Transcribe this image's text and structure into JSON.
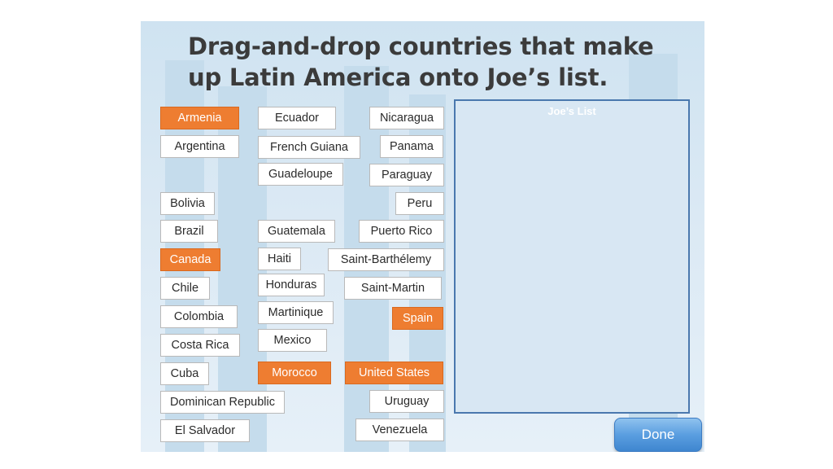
{
  "title": "Drag-and-drop countries that make up Latin America onto Joe’s list.",
  "target": {
    "title": "Joe’s List"
  },
  "done_label": "Done",
  "colors": {
    "highlight": "#ee7d31",
    "list_border": "#4a78ae",
    "done_button": "#5a9ee0"
  },
  "countries": [
    "Armenia",
    "Argentina",
    "Bolivia",
    "Brazil",
    "Canada",
    "Chile",
    "Colombia",
    "Costa Rica",
    "Cuba",
    "Dominican Republic",
    "El Salvador",
    "Ecuador",
    "French Guiana",
    "Guadeloupe",
    "Guatemala",
    "Haiti",
    "Honduras",
    "Martinique",
    "Mexico",
    "Morocco",
    "Nicaragua",
    "Panama",
    "Paraguay",
    "Peru",
    "Puerto Rico",
    "Saint-Barthélemy",
    "Saint-Martin",
    "Spain",
    "United States",
    "Uruguay",
    "Venezuela"
  ],
  "highlighted": [
    "Armenia",
    "Canada",
    "Morocco",
    "Spain",
    "United States"
  ]
}
